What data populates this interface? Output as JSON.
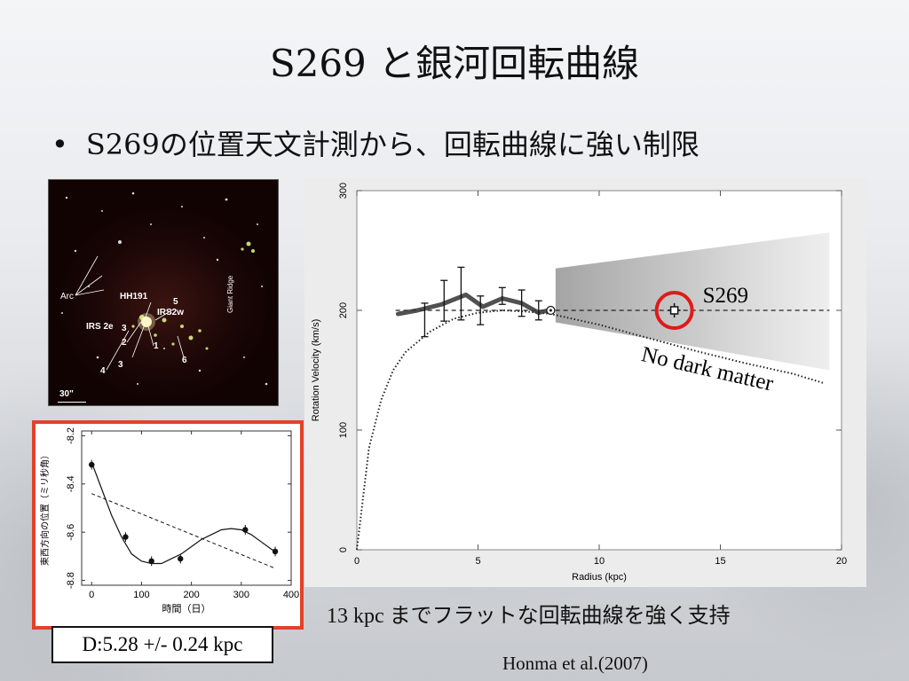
{
  "slide": {
    "title": "S269 と銀河回転曲線",
    "bullet_lead": "S269",
    "bullet_rest": "の位置天文計測から、回転曲線に強い制限",
    "caption_num": "13 kpc ",
    "caption_rest": "までフラットな回転曲線を強く支持",
    "distance": "D:5.28 +/- 0.24 kpc",
    "reference": "Honma et al.(2007)"
  },
  "image_labels": {
    "arc": "Arc",
    "hh191": "HH191",
    "irs2e": "IRS 2e",
    "irs2w": "IRS2w",
    "giant_ridge": "Giant Ridge",
    "n1": "1",
    "n2": "2",
    "n3": "3",
    "n4": "4",
    "n5": "5",
    "n6": "6",
    "scale": "30\""
  },
  "chart_data": [
    {
      "type": "line",
      "xlabel": "Radius (kpc)",
      "ylabel": "Rotation Velocity (km/s)",
      "xlim": [
        0,
        20
      ],
      "ylim": [
        0,
        300
      ],
      "xticks": [
        "0",
        "5",
        "10",
        "15",
        "20"
      ],
      "yticks": [
        "0",
        "100",
        "200",
        "300"
      ],
      "series": [
        {
          "name": "",
          "style": "dashed",
          "x": [
            1.6,
            19.5
          ],
          "y": [
            200,
            200
          ]
        },
        {
          "name": "No dark matter",
          "style": "dotted",
          "x": [
            0,
            0.5,
            1,
            1.5,
            2,
            3,
            4,
            5,
            6,
            7,
            8,
            10,
            12,
            14,
            16,
            18,
            19.3
          ],
          "y": [
            0,
            85,
            125,
            150,
            165,
            182,
            193,
            198,
            200,
            199,
            197,
            188,
            177,
            166,
            156,
            147,
            139
          ]
        },
        {
          "name": "",
          "style": "thick-band",
          "x": [
            1.7,
            2.5,
            3.5,
            4.5,
            5.2,
            6,
            6.8,
            7.5,
            7.9
          ],
          "y": [
            197,
            200,
            205,
            213,
            203,
            210,
            206,
            198,
            200
          ]
        }
      ],
      "points": [
        {
          "x": 2.8,
          "y": 192,
          "err": 14
        },
        {
          "x": 3.6,
          "y": 208,
          "err": 17
        },
        {
          "x": 4.3,
          "y": 214,
          "err": 22
        },
        {
          "x": 5.1,
          "y": 200,
          "err": 12
        },
        {
          "x": 6.0,
          "y": 212,
          "err": 7
        },
        {
          "x": 6.8,
          "y": 206,
          "err": 11
        },
        {
          "x": 7.5,
          "y": 200,
          "err": 8
        }
      ],
      "sun": {
        "x": 8.0,
        "y": 200
      },
      "s269_point": {
        "x": 13.1,
        "y": 200,
        "err": 6,
        "label": "S269"
      },
      "annotation": "No dark matter"
    },
    {
      "type": "scatter",
      "xlabel": "時間（日）",
      "ylabel": "東西方向の位置（ミリ秒角）",
      "xlim": [
        -20,
        400
      ],
      "ylim": [
        -8.82,
        -8.18
      ],
      "xticks": [
        "0",
        "100",
        "200",
        "300",
        "400"
      ],
      "yticks": [
        "-8.2",
        "-8.4",
        "-8.6",
        "-8.8"
      ],
      "points": [
        {
          "x": 0,
          "y": -8.32,
          "err": 0.02
        },
        {
          "x": 68,
          "y": -8.62,
          "err": 0.02
        },
        {
          "x": 120,
          "y": -8.72,
          "err": 0.02
        },
        {
          "x": 178,
          "y": -8.71,
          "err": 0.02
        },
        {
          "x": 308,
          "y": -8.59,
          "err": 0.02
        },
        {
          "x": 368,
          "y": -8.68,
          "err": 0.02
        }
      ],
      "fit_line": {
        "x": [
          0,
          368
        ],
        "y": [
          -8.44,
          -8.75
        ]
      },
      "fit_curve": {
        "x": [
          0,
          20,
          40,
          60,
          80,
          100,
          120,
          140,
          160,
          180,
          200,
          220,
          240,
          260,
          280,
          300,
          320,
          340,
          360,
          368
        ],
        "y": [
          -8.31,
          -8.42,
          -8.53,
          -8.62,
          -8.69,
          -8.72,
          -8.73,
          -8.73,
          -8.71,
          -8.69,
          -8.66,
          -8.63,
          -8.61,
          -8.59,
          -8.585,
          -8.59,
          -8.61,
          -8.64,
          -8.67,
          -8.68
        ]
      }
    }
  ]
}
